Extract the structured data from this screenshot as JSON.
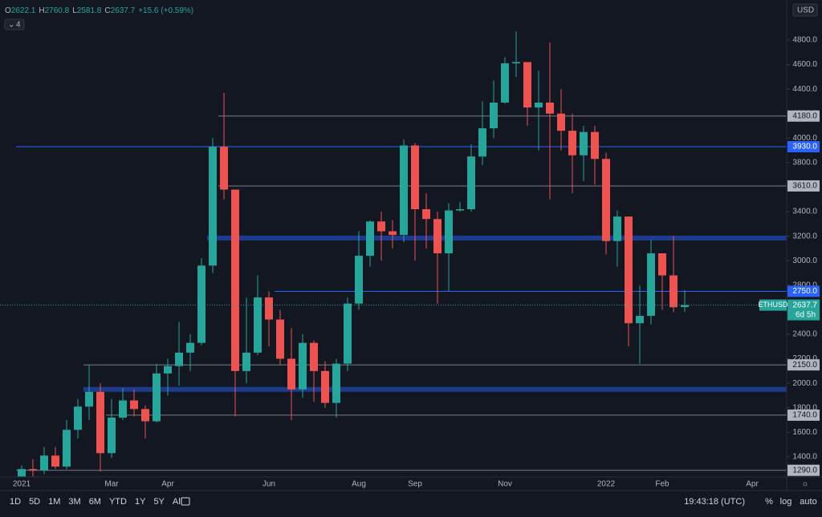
{
  "chart_data": {
    "type": "candlestick",
    "ohlc_prefixes": [
      "O",
      "H",
      "L",
      "C"
    ],
    "change_text": "+15.6 (+0.59%)",
    "indicator_count": "4",
    "currency": "USD",
    "countdown": "6d 5h",
    "series": [
      {
        "name": "ETHUSD",
        "up_color": "#26a69a",
        "down_color": "#ef5350",
        "open": [
          1240,
          1300,
          1290,
          1410,
          1320,
          1620,
          1810,
          1930,
          1430,
          1720,
          1860,
          1790,
          1690,
          2080,
          2140,
          2250,
          2330,
          2960,
          3930,
          3580,
          2100,
          2250,
          2700,
          2520,
          2200,
          1950,
          2330,
          2100,
          1840,
          2160,
          2650,
          3040,
          3320,
          3240,
          3210,
          3940,
          3420,
          3340,
          3060,
          3410,
          3420,
          3850,
          4080,
          4290,
          4610,
          4620,
          4250,
          4290,
          4200,
          4060,
          3860,
          4050,
          3830,
          3160,
          3360,
          2490,
          2550,
          3060,
          2880,
          2622.1,
          null,
          null,
          null,
          null,
          null,
          null,
          null
        ],
        "high": [
          1330,
          1380,
          1480,
          1480,
          1700,
          1870,
          2150,
          2000,
          1870,
          1960,
          1950,
          1820,
          2160,
          2200,
          2500,
          2400,
          3020,
          4000,
          4370,
          3580,
          2700,
          2880,
          2750,
          2600,
          2450,
          2400,
          2350,
          2180,
          2200,
          2700,
          3240,
          3330,
          3400,
          3330,
          3990,
          3960,
          3550,
          3400,
          3470,
          3480,
          3950,
          4300,
          4470,
          4660,
          4870,
          4620,
          4550,
          4780,
          4400,
          4200,
          4100,
          4100,
          3880,
          3410,
          3360,
          2800,
          3170,
          3060,
          3200,
          2760.8,
          null,
          null,
          null,
          null,
          null,
          null,
          null
        ],
        "low": [
          1236,
          1240,
          1260,
          1300,
          1300,
          1550,
          1700,
          1280,
          1390,
          1700,
          1730,
          1550,
          1680,
          1900,
          1980,
          2100,
          2310,
          2900,
          3500,
          1730,
          2000,
          2230,
          2300,
          2150,
          1700,
          1880,
          1850,
          1800,
          1720,
          2100,
          2600,
          2950,
          3000,
          3100,
          3150,
          3000,
          3100,
          2650,
          2750,
          3400,
          3400,
          3780,
          4000,
          4280,
          4500,
          4100,
          3900,
          3500,
          3900,
          3550,
          3650,
          3620,
          3050,
          2950,
          2300,
          2160,
          2480,
          2600,
          2580,
          2581.8,
          null,
          null,
          null,
          null,
          null,
          null,
          null
        ],
        "close": [
          1300,
          1290,
          1410,
          1320,
          1620,
          1810,
          1930,
          1430,
          1720,
          1860,
          1790,
          1690,
          2080,
          2140,
          2250,
          2330,
          2960,
          3930,
          3580,
          2100,
          2250,
          2700,
          2520,
          2200,
          1950,
          2330,
          2100,
          1840,
          2160,
          2650,
          3040,
          3320,
          3240,
          3210,
          3940,
          3420,
          3340,
          3060,
          3410,
          3420,
          3850,
          4080,
          4290,
          4610,
          4620,
          4250,
          4290,
          4200,
          4060,
          3860,
          4050,
          3830,
          3160,
          3360,
          2490,
          2550,
          3060,
          2880,
          2620,
          2637.7,
          null,
          null,
          null,
          null,
          null,
          null,
          null
        ]
      }
    ],
    "categories": [
      "2021",
      null,
      null,
      null,
      null,
      null,
      null,
      null,
      "Mar",
      null,
      null,
      null,
      null,
      "Apr",
      null,
      null,
      null,
      null,
      null,
      null,
      null,
      null,
      "Jun",
      null,
      null,
      null,
      null,
      null,
      null,
      null,
      "Aug",
      null,
      null,
      null,
      null,
      "Sep",
      null,
      null,
      null,
      null,
      null,
      null,
      null,
      "Nov",
      null,
      null,
      null,
      null,
      null,
      null,
      null,
      null,
      "2022",
      null,
      null,
      null,
      null,
      "Feb",
      null,
      null,
      null,
      null,
      null,
      null,
      null,
      "Apr",
      null
    ],
    "ylim": [
      1236,
      5094
    ],
    "yticks": [
      {
        "value": 1400,
        "label": "1400.0"
      },
      {
        "value": 1600,
        "label": "1600.0"
      },
      {
        "value": 1800,
        "label": "1800.0"
      },
      {
        "value": 2000,
        "label": "2000.0"
      },
      {
        "value": 2200,
        "label": "2200.0"
      },
      {
        "value": 2400,
        "label": "2400.0"
      },
      {
        "value": 2600,
        "label": "2600.0"
      },
      {
        "value": 2800,
        "label": "2800.0"
      },
      {
        "value": 3000,
        "label": "3000.0"
      },
      {
        "value": 3200,
        "label": "3200.0"
      },
      {
        "value": 3400,
        "label": "3400.0"
      },
      {
        "value": 3600,
        "label": "3600.0"
      },
      {
        "value": 3800,
        "label": "3800.0"
      },
      {
        "value": 4000,
        "label": "4000.0"
      },
      {
        "value": 4200,
        "label": "4200.0"
      },
      {
        "value": 4400,
        "label": "4400.0"
      },
      {
        "value": 4600,
        "label": "4600.0"
      },
      {
        "value": 4800,
        "label": "4800.0"
      }
    ],
    "levels": [
      {
        "value": 4180,
        "label": "4180.0",
        "color": "#787b86"
      },
      {
        "value": 3930,
        "label": "3930.0",
        "color": "#2962ff"
      },
      {
        "value": 3610,
        "label": "3610.0",
        "color": "#787b86"
      },
      {
        "value": 2750,
        "label": "2750.0",
        "color": "#2962ff"
      },
      {
        "value": 2150,
        "label": "2150.0",
        "color": "#787b86"
      },
      {
        "value": 1740,
        "label": "1740.0",
        "color": "#787b86"
      },
      {
        "value": 1290,
        "label": "1290.0",
        "color": "#787b86"
      }
    ],
    "level_starts": [
      18,
      0,
      18,
      23,
      6,
      8,
      0
    ],
    "zones": [
      {
        "value": 3185,
        "color": "#1e3a8a"
      },
      {
        "value": 1950,
        "color": "#1e3a8a"
      }
    ],
    "zone_starts": [
      17,
      6
    ],
    "timeframes": [
      "1D",
      "5D",
      "1M",
      "3M",
      "6M",
      "YTD",
      "1Y",
      "5Y",
      "All"
    ],
    "clock": "19:43:18 (UTC)",
    "scale_options": [
      "%",
      "log",
      "auto"
    ]
  }
}
